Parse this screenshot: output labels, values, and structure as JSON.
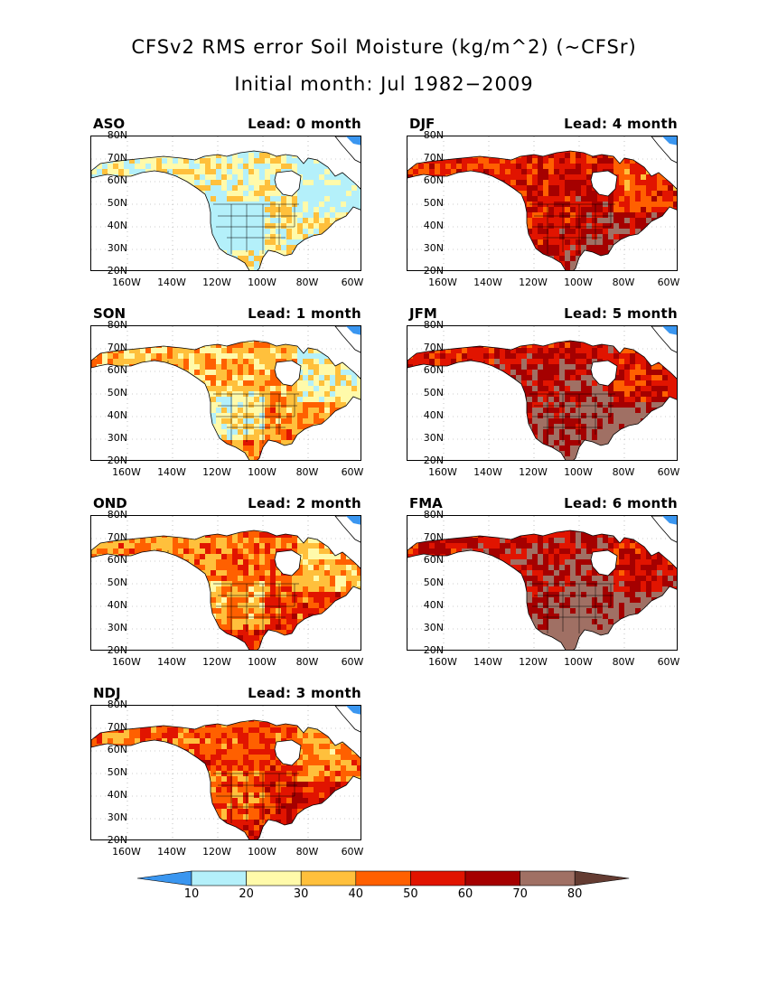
{
  "title": {
    "line1": "CFSv2 RMS error Soil Moisture (kg/m^2) (~CFSr)",
    "line2": "Initial month: Jul 1982−2009"
  },
  "axes": {
    "lat_labels": [
      "80N",
      "70N",
      "60N",
      "50N",
      "40N",
      "30N",
      "20N"
    ],
    "lon_labels": [
      "160W",
      "140W",
      "120W",
      "100W",
      "80W",
      "60W"
    ]
  },
  "panels": [
    {
      "season": "ASO",
      "lead": "Lead: 0 month",
      "intensity": 0.15
    },
    {
      "season": "DJF",
      "lead": "Lead: 4 month",
      "intensity": 0.75
    },
    {
      "season": "SON",
      "lead": "Lead: 1 month",
      "intensity": 0.35
    },
    {
      "season": "JFM",
      "lead": "Lead: 5 month",
      "intensity": 0.85
    },
    {
      "season": "OND",
      "lead": "Lead: 2 month",
      "intensity": 0.5
    },
    {
      "season": "FMA",
      "lead": "Lead: 6 month",
      "intensity": 0.9
    },
    {
      "season": "NDJ",
      "lead": "Lead: 3 month",
      "intensity": 0.6
    }
  ],
  "colorbar": {
    "labels": [
      "10",
      "20",
      "30",
      "40",
      "50",
      "60",
      "70",
      "80"
    ],
    "colors": [
      "#3a96f0",
      "#b4f0fa",
      "#fffaaa",
      "#ffc03c",
      "#ff6000",
      "#e11400",
      "#a50000",
      "#a07064",
      "#643c32"
    ]
  }
}
